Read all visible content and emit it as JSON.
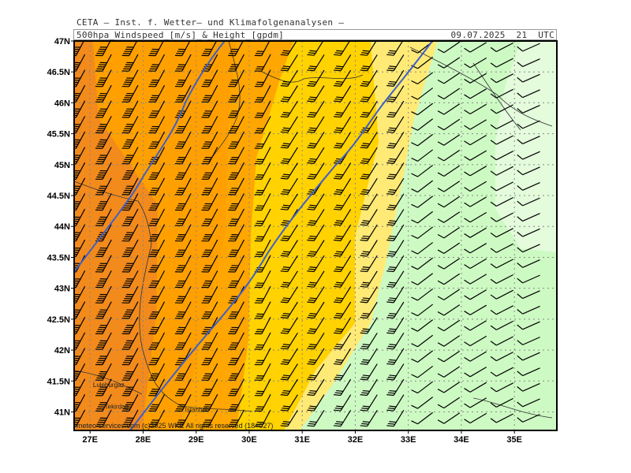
{
  "header": {
    "organization": "CETA — Inst. f. Wetter— und Klimafolgenanalysen —",
    "title": "500hpa_Windspeed_[m/s]_&_Height_[gpdm]",
    "valid_time": "09.07.2025  21  UTC"
  },
  "map": {
    "lon_range": [
      26.7,
      35.8
    ],
    "lat_range": [
      40.7,
      47.0
    ],
    "lon_ticks": [
      "27E",
      "28E",
      "29E",
      "30E",
      "31E",
      "32E",
      "33E",
      "34E",
      "35E"
    ],
    "lat_ticks": [
      "41N",
      "41.5N",
      "42N",
      "42.5N",
      "43N",
      "43.5N",
      "44N",
      "44.5N",
      "45N",
      "45.5N",
      "46N",
      "46.5N",
      "47N"
    ],
    "gridlines": true,
    "places": [
      {
        "name": "Luleburgaz",
        "lon": 27.35,
        "lat": 41.4
      },
      {
        "name": "Tekirdag",
        "lon": 27.5,
        "lat": 41.05
      },
      {
        "name": "Istanbul",
        "lon": 29.0,
        "lat": 41.0
      }
    ],
    "credit": "meteo-services.com  (c)2025 WKE  All rights reserved (18+027)"
  },
  "colors": {
    "dark_orange": "#f28a1c",
    "orange": "#ffa000",
    "gold": "#ffd200",
    "light_yellow": "#ffea75",
    "light_green": "#cdfac3",
    "pale_green": "#e4fbdc",
    "height_contour": "#3f5fc6",
    "wind_barb": "#000000"
  }
}
